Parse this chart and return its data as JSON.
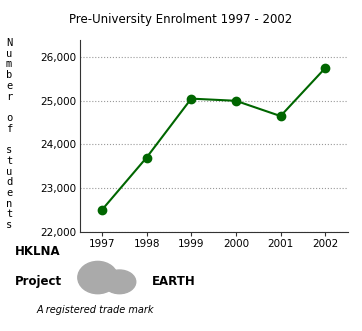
{
  "title": "Pre-University Enrolment 1997 - 2002",
  "x": [
    1997,
    1998,
    1999,
    2000,
    2001,
    2002
  ],
  "y": [
    22500,
    23700,
    25050,
    25000,
    24650,
    25750
  ],
  "line_color": "#006600",
  "marker": "o",
  "marker_size": 6,
  "ylim": [
    22000,
    26400
  ],
  "yticks": [
    22000,
    23000,
    24000,
    25000,
    26000
  ],
  "ytick_labels": [
    "22,000",
    "23,000",
    "24,000",
    "25,000",
    "26,000"
  ],
  "xticks": [
    1997,
    1998,
    1999,
    2000,
    2001,
    2002
  ],
  "background_color": "#ffffff",
  "grid_color": "#999999",
  "title_fontsize": 8.5,
  "tick_fontsize": 7.5,
  "ylabel_chars": [
    "N",
    "u",
    "m",
    "b",
    "e",
    "r",
    "",
    "o",
    "f",
    "",
    "s",
    "t",
    "u",
    "d",
    "e",
    "n",
    "t",
    "s"
  ],
  "footer_line1": "HKLNA",
  "footer_line2a": "Project",
  "footer_line2b": "EARTH",
  "footer_line3": "A registered trade mark"
}
